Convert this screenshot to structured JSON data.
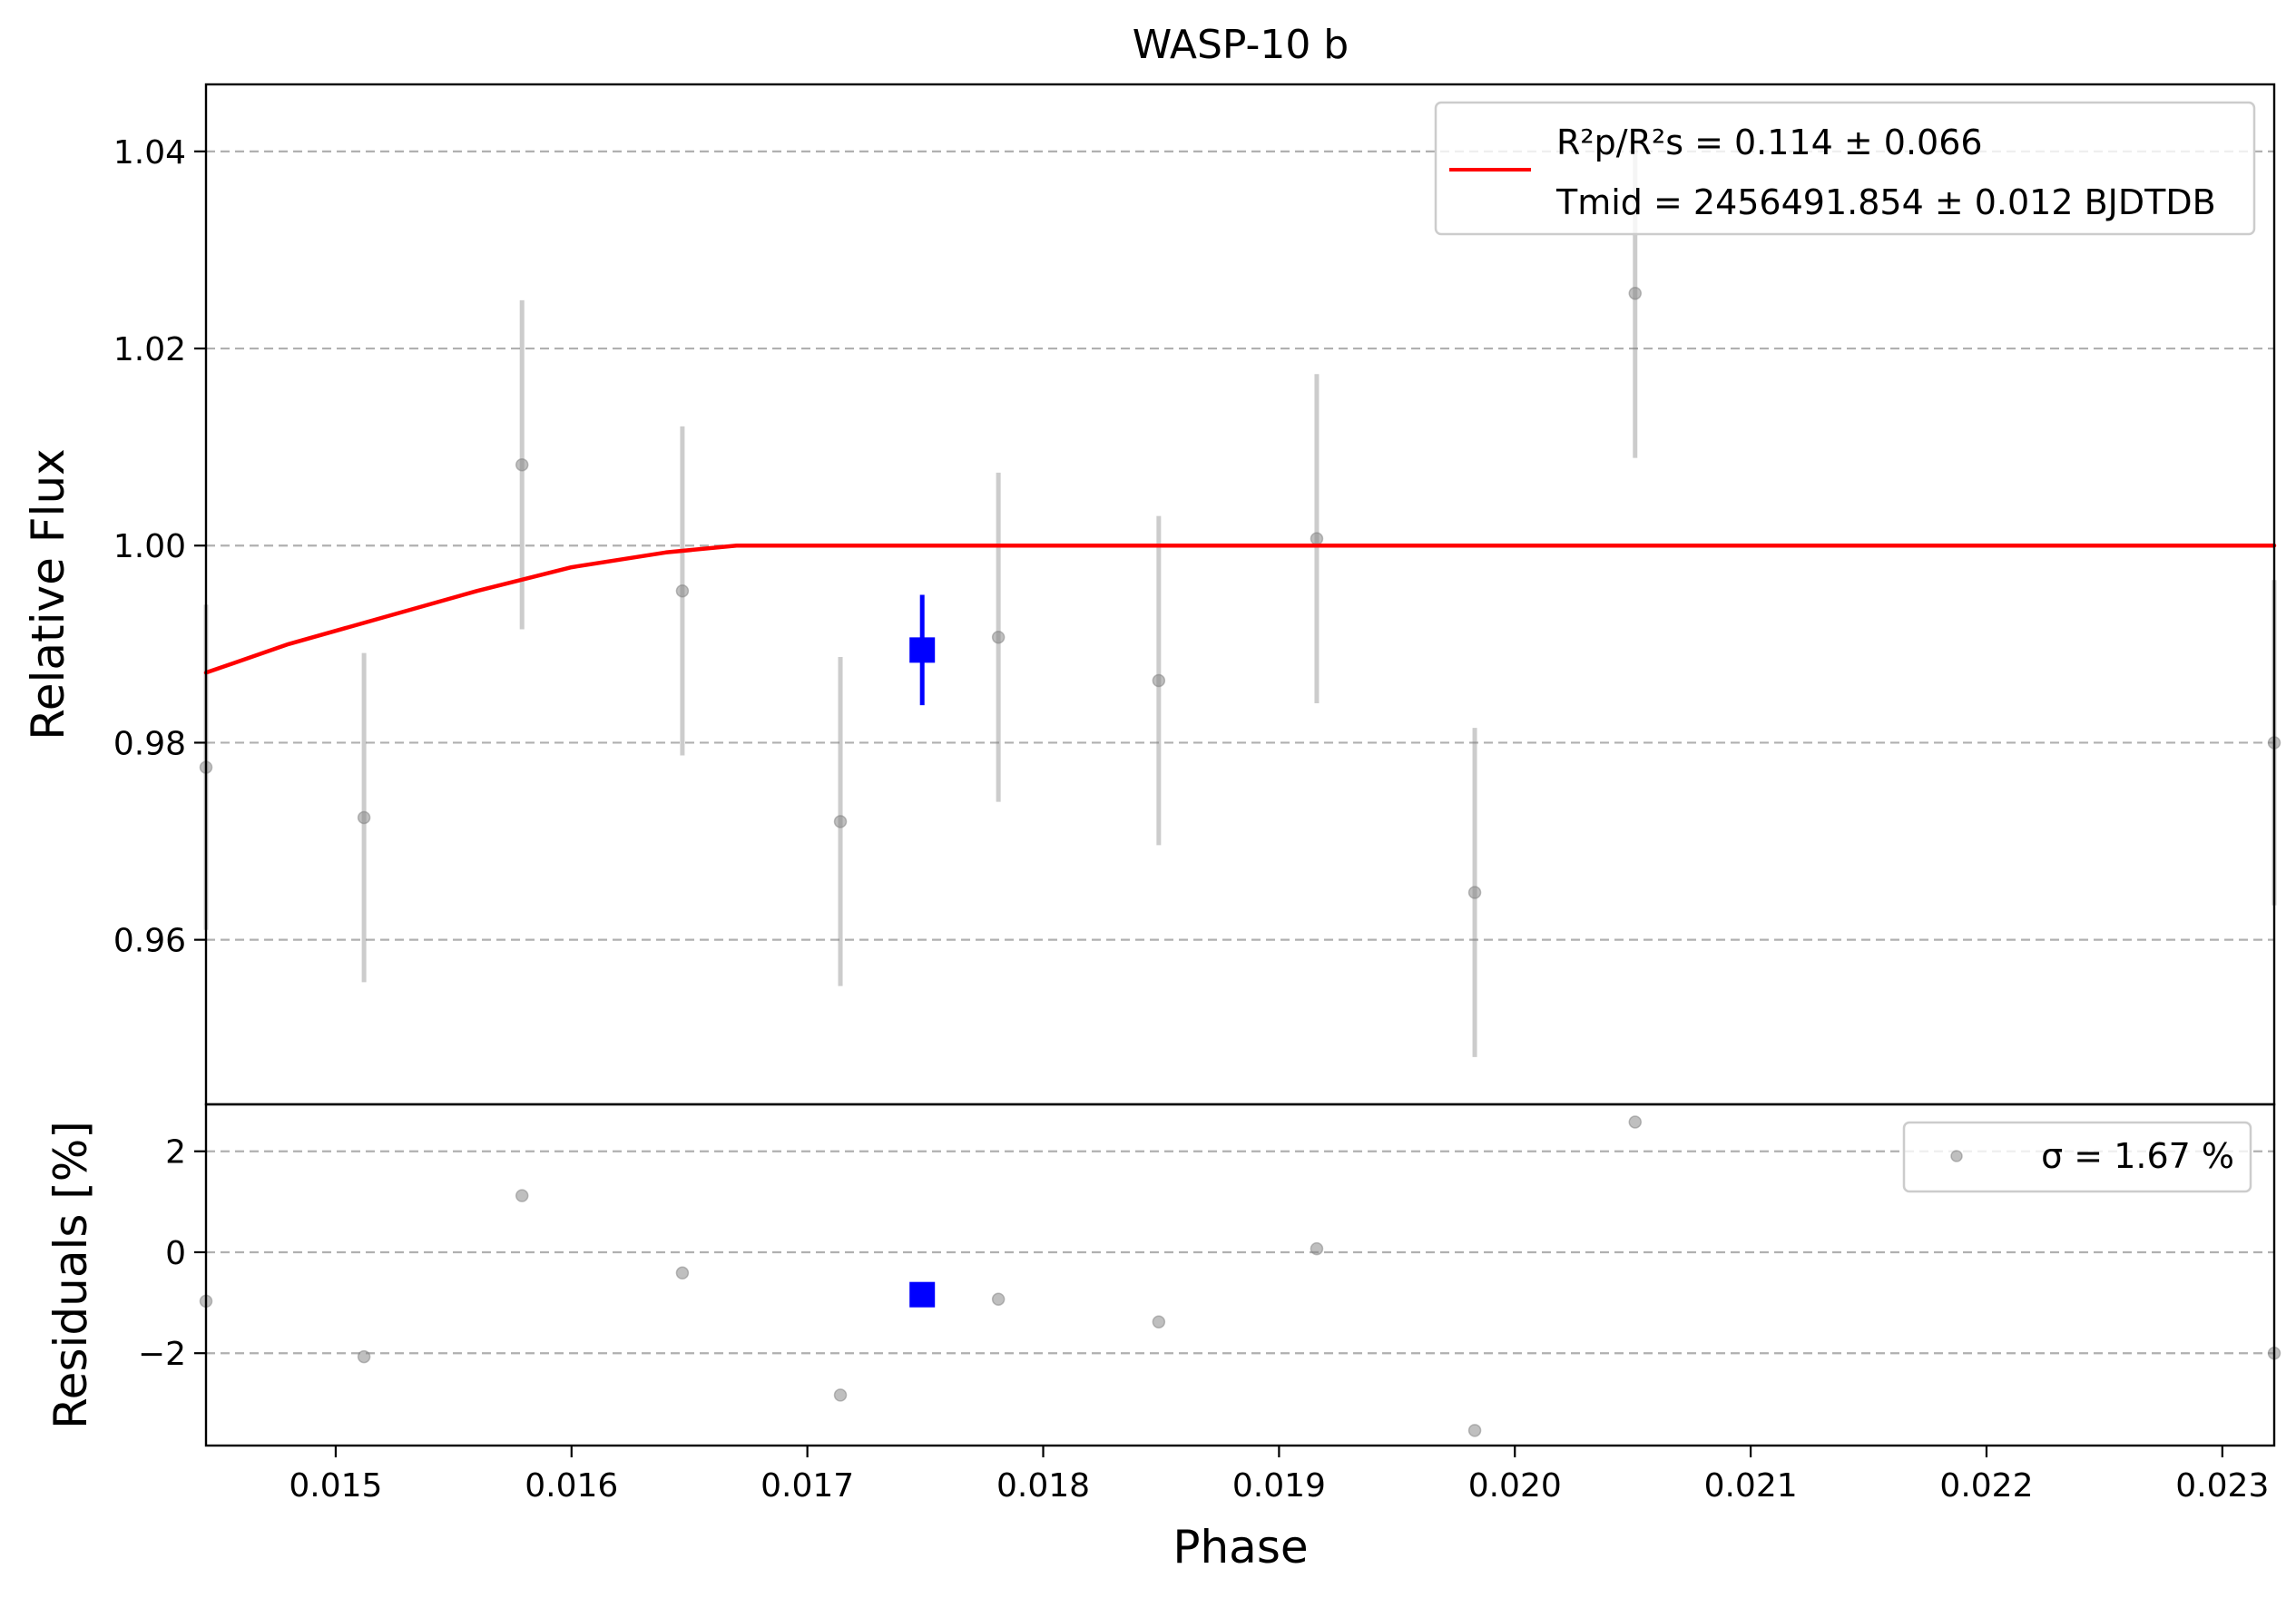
{
  "chart_data": {
    "type": "scatter",
    "title": "WASP-10 b",
    "xlabel": "Phase",
    "xlim": [
      0.01445,
      0.02322
    ],
    "xticks": [
      "0.015",
      "0.016",
      "0.017",
      "0.018",
      "0.019",
      "0.020",
      "0.021",
      "0.022",
      "0.023"
    ],
    "grid": true,
    "top_panel": {
      "ylabel": "Relative Flux",
      "ylim": [
        0.9433,
        1.0468
      ],
      "yticks": [
        "0.96",
        "0.98",
        "1.00",
        "1.02",
        "1.04"
      ],
      "legend_position": "top-right",
      "model": {
        "color": "#ff0000",
        "legend_line1": "R²p/R²s = 0.114 ± 0.066",
        "legend_line2": "Tmid = 2456491.854 ± 0.012 BJDTDB",
        "points": [
          {
            "x": 0.01445,
            "y": 0.9871
          },
          {
            "x": 0.0148,
            "y": 0.99
          },
          {
            "x": 0.0152,
            "y": 0.9927
          },
          {
            "x": 0.0156,
            "y": 0.9954
          },
          {
            "x": 0.016,
            "y": 0.9978
          },
          {
            "x": 0.0164,
            "y": 0.9993
          },
          {
            "x": 0.0167,
            "y": 1.0
          },
          {
            "x": 0.02322,
            "y": 1.0
          }
        ]
      },
      "data": {
        "color": "#808080",
        "points": [
          {
            "x": 0.01445,
            "y": 0.9775,
            "err": 0.0165
          },
          {
            "x": 0.01512,
            "y": 0.9724,
            "err": 0.0167
          },
          {
            "x": 0.01579,
            "y": 1.0082,
            "err": 0.0167
          },
          {
            "x": 0.01647,
            "y": 0.9954,
            "err": 0.0167
          },
          {
            "x": 0.01714,
            "y": 0.972,
            "err": 0.0167
          },
          {
            "x": 0.01781,
            "y": 0.9907,
            "err": 0.0167
          },
          {
            "x": 0.01849,
            "y": 0.9863,
            "err": 0.0167
          },
          {
            "x": 0.01916,
            "y": 1.0007,
            "err": 0.0167
          },
          {
            "x": 0.01983,
            "y": 0.9648,
            "err": 0.0167
          },
          {
            "x": 0.02051,
            "y": 1.0256,
            "err": 0.0167
          },
          {
            "x": 0.02322,
            "y": 0.98,
            "err": 0.0165
          }
        ]
      },
      "binned": {
        "color": "#0000ff",
        "points": [
          {
            "x": 0.017487,
            "y": 0.9894,
            "err": 0.0056
          }
        ]
      }
    },
    "bottom_panel": {
      "ylabel": "Residuals [%]",
      "ylim": [
        -3.83,
        2.93
      ],
      "yticks": [
        "−2",
        "0",
        "2"
      ],
      "legend_position": "top-right",
      "legend_text": "σ = 1.67 %",
      "data": {
        "color": "#808080",
        "points": [
          {
            "x": 0.01445,
            "y": -0.97
          },
          {
            "x": 0.01512,
            "y": -2.07
          },
          {
            "x": 0.01579,
            "y": 1.12
          },
          {
            "x": 0.01647,
            "y": -0.41
          },
          {
            "x": 0.01714,
            "y": -2.83
          },
          {
            "x": 0.01781,
            "y": -0.93
          },
          {
            "x": 0.01849,
            "y": -1.38
          },
          {
            "x": 0.01916,
            "y": 0.07
          },
          {
            "x": 0.01983,
            "y": -3.53
          },
          {
            "x": 0.02051,
            "y": 2.58
          },
          {
            "x": 0.02322,
            "y": -2.0
          }
        ]
      },
      "binned": {
        "color": "#0000ff",
        "points": [
          {
            "x": 0.017487,
            "y": -0.84
          }
        ]
      }
    }
  }
}
